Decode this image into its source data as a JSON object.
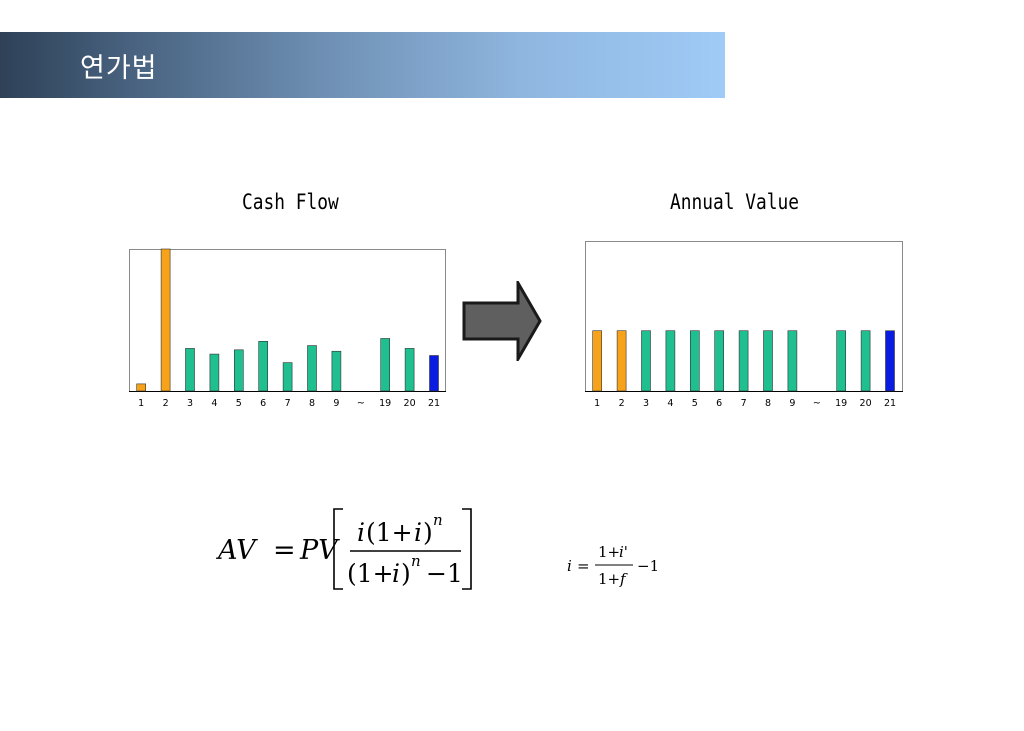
{
  "header": {
    "title": "연가법",
    "gradient_from": "#2e4157",
    "gradient_to": "#9fcbf6"
  },
  "colors": {
    "orange": "#f7a21b",
    "teal": "#1fbf8f",
    "blue": "#0a1ce0"
  },
  "chart_data": [
    {
      "type": "bar",
      "title": "Cash Flow",
      "categories": [
        "1",
        "2",
        "3",
        "4",
        "5",
        "6",
        "7",
        "8",
        "9",
        "~",
        "19",
        "20",
        "21"
      ],
      "values": [
        0.5,
        10,
        3,
        2.6,
        2.9,
        3.5,
        2,
        3.2,
        2.8,
        null,
        3.7,
        3,
        2.5
      ],
      "bar_colors": [
        "orange",
        "orange",
        "teal",
        "teal",
        "teal",
        "teal",
        "teal",
        "teal",
        "teal",
        "none",
        "teal",
        "teal",
        "blue"
      ],
      "ylim": [
        0,
        10
      ],
      "grid": false
    },
    {
      "type": "bar",
      "title": "Annual Value",
      "categories": [
        "1",
        "2",
        "3",
        "4",
        "5",
        "6",
        "7",
        "8",
        "9",
        "~",
        "19",
        "20",
        "21"
      ],
      "values": [
        4.3,
        4.3,
        4.3,
        4.3,
        4.3,
        4.3,
        4.3,
        4.3,
        4.3,
        null,
        4.3,
        4.3,
        4.3
      ],
      "bar_colors": [
        "orange",
        "orange",
        "teal",
        "teal",
        "teal",
        "teal",
        "teal",
        "teal",
        "teal",
        "none",
        "teal",
        "teal",
        "blue"
      ],
      "ylim": [
        0,
        10.7
      ],
      "grid": false
    }
  ],
  "formulas": {
    "av": {
      "lhs": "AV",
      "equals": "=",
      "pv": "PV",
      "numerator_i": "i",
      "numerator_paren": "(1+",
      "numerator_i2": "i",
      "numerator_close": ")",
      "exponent": "n",
      "denominator_open": "(1+",
      "denominator_i": "i",
      "denominator_close": ")",
      "denominator_exp": "n",
      "denominator_minus": "−1"
    },
    "i": {
      "lhs": "i",
      "equals": "=",
      "numerator_one": "1+",
      "numerator_var": "i'",
      "denominator_one": "1+",
      "denominator_var": "f",
      "tail": "−1"
    }
  }
}
